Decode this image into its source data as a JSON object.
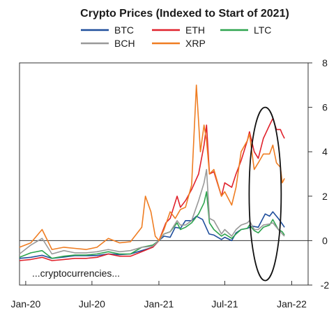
{
  "chart_data": {
    "type": "line",
    "title": "Crypto Prices (Indexed to Start of 2021)",
    "annotation": "...cryptocurrencies...",
    "xlabel": "",
    "ylabel": "",
    "x_ticks": [
      "Jan-20",
      "Jul-20",
      "Jan-21",
      "Jul-21",
      "Jan-22"
    ],
    "y_ticks": [
      -2,
      0,
      2,
      4,
      6,
      8
    ],
    "xlim": [
      "2019-12-15",
      "2022-02-15"
    ],
    "ylim": [
      -2,
      8
    ],
    "y_axis_side": "right",
    "grid": false,
    "legend_position": "top",
    "highlight": {
      "shape": "ellipse",
      "center_x": "2021-10-20",
      "center_y": 2.1,
      "x_half_span_days": 44,
      "y_half_span": 3.9
    },
    "series": [
      {
        "name": "BTC",
        "color": "#1f4e9c",
        "points": [
          [
            "2019-12-15",
            -0.8
          ],
          [
            "2020-01-15",
            -0.75
          ],
          [
            "2020-02-15",
            -0.66
          ],
          [
            "2020-03-13",
            -0.8
          ],
          [
            "2020-04-15",
            -0.74
          ],
          [
            "2020-05-15",
            -0.68
          ],
          [
            "2020-06-15",
            -0.68
          ],
          [
            "2020-07-15",
            -0.67
          ],
          [
            "2020-08-15",
            -0.6
          ],
          [
            "2020-09-15",
            -0.63
          ],
          [
            "2020-10-15",
            -0.6
          ],
          [
            "2020-11-15",
            -0.45
          ],
          [
            "2020-12-15",
            -0.3
          ],
          [
            "2021-01-01",
            0
          ],
          [
            "2021-01-15",
            0.2
          ],
          [
            "2021-02-01",
            0.15
          ],
          [
            "2021-02-15",
            0.6
          ],
          [
            "2021-03-01",
            0.55
          ],
          [
            "2021-03-15",
            0.9
          ],
          [
            "2021-04-01",
            0.9
          ],
          [
            "2021-04-14",
            1.1
          ],
          [
            "2021-05-01",
            0.95
          ],
          [
            "2021-05-19",
            0.3
          ],
          [
            "2021-06-01",
            0.25
          ],
          [
            "2021-06-22",
            0.05
          ],
          [
            "2021-07-01",
            0.15
          ],
          [
            "2021-07-20",
            0.0
          ],
          [
            "2021-08-01",
            0.35
          ],
          [
            "2021-08-15",
            0.5
          ],
          [
            "2021-09-01",
            0.55
          ],
          [
            "2021-09-15",
            0.65
          ],
          [
            "2021-10-01",
            0.6
          ],
          [
            "2021-10-20",
            1.2
          ],
          [
            "2021-11-01",
            1.1
          ],
          [
            "2021-11-10",
            1.3
          ],
          [
            "2021-11-25",
            1.0
          ],
          [
            "2021-12-06",
            0.75
          ],
          [
            "2021-12-12",
            0.6
          ]
        ]
      },
      {
        "name": "ETH",
        "color": "#e0212b",
        "points": [
          [
            "2019-12-15",
            -0.9
          ],
          [
            "2020-01-15",
            -0.85
          ],
          [
            "2020-02-15",
            -0.75
          ],
          [
            "2020-03-13",
            -0.9
          ],
          [
            "2020-04-15",
            -0.85
          ],
          [
            "2020-05-15",
            -0.8
          ],
          [
            "2020-06-15",
            -0.8
          ],
          [
            "2020-07-15",
            -0.75
          ],
          [
            "2020-08-15",
            -0.6
          ],
          [
            "2020-09-15",
            -0.7
          ],
          [
            "2020-10-15",
            -0.7
          ],
          [
            "2020-11-15",
            -0.5
          ],
          [
            "2020-12-15",
            -0.3
          ],
          [
            "2021-01-01",
            0
          ],
          [
            "2021-01-20",
            0.8
          ],
          [
            "2021-02-01",
            1.0
          ],
          [
            "2021-02-20",
            2.0
          ],
          [
            "2021-03-01",
            1.5
          ],
          [
            "2021-03-15",
            1.8
          ],
          [
            "2021-04-01",
            2.3
          ],
          [
            "2021-04-20",
            3.0
          ],
          [
            "2021-05-05",
            4.3
          ],
          [
            "2021-05-12",
            5.2
          ],
          [
            "2021-05-20",
            3.0
          ],
          [
            "2021-06-01",
            3.1
          ],
          [
            "2021-06-22",
            2.0
          ],
          [
            "2021-07-01",
            2.6
          ],
          [
            "2021-07-20",
            2.4
          ],
          [
            "2021-08-01",
            3.0
          ],
          [
            "2021-08-15",
            3.6
          ],
          [
            "2021-09-01",
            4.5
          ],
          [
            "2021-09-07",
            4.9
          ],
          [
            "2021-09-20",
            4.0
          ],
          [
            "2021-10-01",
            3.7
          ],
          [
            "2021-10-15",
            4.6
          ],
          [
            "2021-11-01",
            5.2
          ],
          [
            "2021-11-10",
            5.5
          ],
          [
            "2021-11-20",
            5.0
          ],
          [
            "2021-12-01",
            5.0
          ],
          [
            "2021-12-06",
            4.8
          ],
          [
            "2021-12-12",
            4.6
          ]
        ]
      },
      {
        "name": "LTC",
        "color": "#2ea44f",
        "points": [
          [
            "2019-12-15",
            -0.75
          ],
          [
            "2020-01-15",
            -0.55
          ],
          [
            "2020-02-15",
            -0.45
          ],
          [
            "2020-03-13",
            -0.8
          ],
          [
            "2020-04-15",
            -0.7
          ],
          [
            "2020-05-15",
            -0.65
          ],
          [
            "2020-06-15",
            -0.65
          ],
          [
            "2020-07-15",
            -0.6
          ],
          [
            "2020-08-15",
            -0.5
          ],
          [
            "2020-09-15",
            -0.6
          ],
          [
            "2020-10-15",
            -0.6
          ],
          [
            "2020-11-15",
            -0.3
          ],
          [
            "2020-12-15",
            -0.2
          ],
          [
            "2021-01-01",
            0
          ],
          [
            "2021-01-15",
            0.3
          ],
          [
            "2021-02-01",
            0.4
          ],
          [
            "2021-02-20",
            0.8
          ],
          [
            "2021-03-01",
            0.5
          ],
          [
            "2021-03-15",
            0.6
          ],
          [
            "2021-04-01",
            0.8
          ],
          [
            "2021-04-20",
            1.2
          ],
          [
            "2021-05-05",
            1.7
          ],
          [
            "2021-05-12",
            2.2
          ],
          [
            "2021-05-20",
            0.8
          ],
          [
            "2021-06-01",
            0.5
          ],
          [
            "2021-06-22",
            0.2
          ],
          [
            "2021-07-01",
            0.3
          ],
          [
            "2021-07-20",
            0.1
          ],
          [
            "2021-08-01",
            0.3
          ],
          [
            "2021-08-15",
            0.5
          ],
          [
            "2021-09-01",
            0.55
          ],
          [
            "2021-09-07",
            0.7
          ],
          [
            "2021-09-20",
            0.45
          ],
          [
            "2021-10-01",
            0.35
          ],
          [
            "2021-10-15",
            0.6
          ],
          [
            "2021-11-01",
            0.7
          ],
          [
            "2021-11-10",
            0.95
          ],
          [
            "2021-11-25",
            0.5
          ],
          [
            "2021-12-06",
            0.4
          ],
          [
            "2021-12-12",
            0.25
          ]
        ]
      },
      {
        "name": "BCH",
        "color": "#999999",
        "points": [
          [
            "2019-12-15",
            -0.6
          ],
          [
            "2020-01-15",
            -0.2
          ],
          [
            "2020-02-15",
            0.1
          ],
          [
            "2020-03-13",
            -0.6
          ],
          [
            "2020-04-15",
            -0.45
          ],
          [
            "2020-05-15",
            -0.55
          ],
          [
            "2020-06-15",
            -0.55
          ],
          [
            "2020-07-15",
            -0.5
          ],
          [
            "2020-08-15",
            -0.4
          ],
          [
            "2020-09-15",
            -0.5
          ],
          [
            "2020-10-15",
            -0.45
          ],
          [
            "2020-11-15",
            -0.3
          ],
          [
            "2020-12-15",
            -0.25
          ],
          [
            "2021-01-01",
            0
          ],
          [
            "2021-01-15",
            0.3
          ],
          [
            "2021-02-01",
            0.4
          ],
          [
            "2021-02-20",
            0.9
          ],
          [
            "2021-03-01",
            0.7
          ],
          [
            "2021-03-15",
            0.7
          ],
          [
            "2021-04-01",
            0.9
          ],
          [
            "2021-04-20",
            1.8
          ],
          [
            "2021-05-05",
            2.6
          ],
          [
            "2021-05-12",
            3.2
          ],
          [
            "2021-05-20",
            1.0
          ],
          [
            "2021-06-01",
            0.9
          ],
          [
            "2021-06-22",
            0.3
          ],
          [
            "2021-07-01",
            0.5
          ],
          [
            "2021-07-20",
            0.2
          ],
          [
            "2021-08-01",
            0.5
          ],
          [
            "2021-08-15",
            0.7
          ],
          [
            "2021-09-01",
            0.8
          ],
          [
            "2021-09-07",
            0.9
          ],
          [
            "2021-09-20",
            0.5
          ],
          [
            "2021-10-01",
            0.5
          ],
          [
            "2021-10-15",
            0.7
          ],
          [
            "2021-11-01",
            0.75
          ],
          [
            "2021-11-10",
            0.8
          ],
          [
            "2021-11-25",
            0.5
          ],
          [
            "2021-12-06",
            0.3
          ],
          [
            "2021-12-12",
            0.2
          ]
        ]
      },
      {
        "name": "XRP",
        "color": "#ef7d22",
        "points": [
          [
            "2019-12-15",
            -0.3
          ],
          [
            "2020-01-15",
            -0.1
          ],
          [
            "2020-02-15",
            0.5
          ],
          [
            "2020-03-13",
            -0.4
          ],
          [
            "2020-04-15",
            -0.3
          ],
          [
            "2020-05-15",
            -0.35
          ],
          [
            "2020-06-15",
            -0.4
          ],
          [
            "2020-07-15",
            -0.3
          ],
          [
            "2020-08-15",
            0.1
          ],
          [
            "2020-09-15",
            -0.1
          ],
          [
            "2020-10-15",
            -0.05
          ],
          [
            "2020-11-15",
            0.6
          ],
          [
            "2020-11-25",
            2.0
          ],
          [
            "2020-12-10",
            1.3
          ],
          [
            "2020-12-22",
            0.2
          ],
          [
            "2021-01-01",
            0
          ],
          [
            "2021-01-15",
            0.5
          ],
          [
            "2021-02-01",
            1.3
          ],
          [
            "2021-02-15",
            1.0
          ],
          [
            "2021-03-01",
            1.4
          ],
          [
            "2021-03-15",
            1.5
          ],
          [
            "2021-04-01",
            2.5
          ],
          [
            "2021-04-14",
            7.0
          ],
          [
            "2021-04-25",
            4.0
          ],
          [
            "2021-05-05",
            5.2
          ],
          [
            "2021-05-12",
            4.5
          ],
          [
            "2021-05-20",
            3.0
          ],
          [
            "2021-06-01",
            3.2
          ],
          [
            "2021-06-22",
            2.0
          ],
          [
            "2021-07-01",
            2.2
          ],
          [
            "2021-07-20",
            1.6
          ],
          [
            "2021-08-01",
            2.4
          ],
          [
            "2021-08-15",
            4.0
          ],
          [
            "2021-09-01",
            4.5
          ],
          [
            "2021-09-07",
            4.8
          ],
          [
            "2021-09-20",
            3.2
          ],
          [
            "2021-10-01",
            3.5
          ],
          [
            "2021-10-15",
            3.9
          ],
          [
            "2021-11-01",
            3.9
          ],
          [
            "2021-11-10",
            4.3
          ],
          [
            "2021-11-20",
            3.5
          ],
          [
            "2021-12-01",
            3.3
          ],
          [
            "2021-12-06",
            2.6
          ],
          [
            "2021-12-12",
            2.8
          ]
        ]
      }
    ]
  }
}
